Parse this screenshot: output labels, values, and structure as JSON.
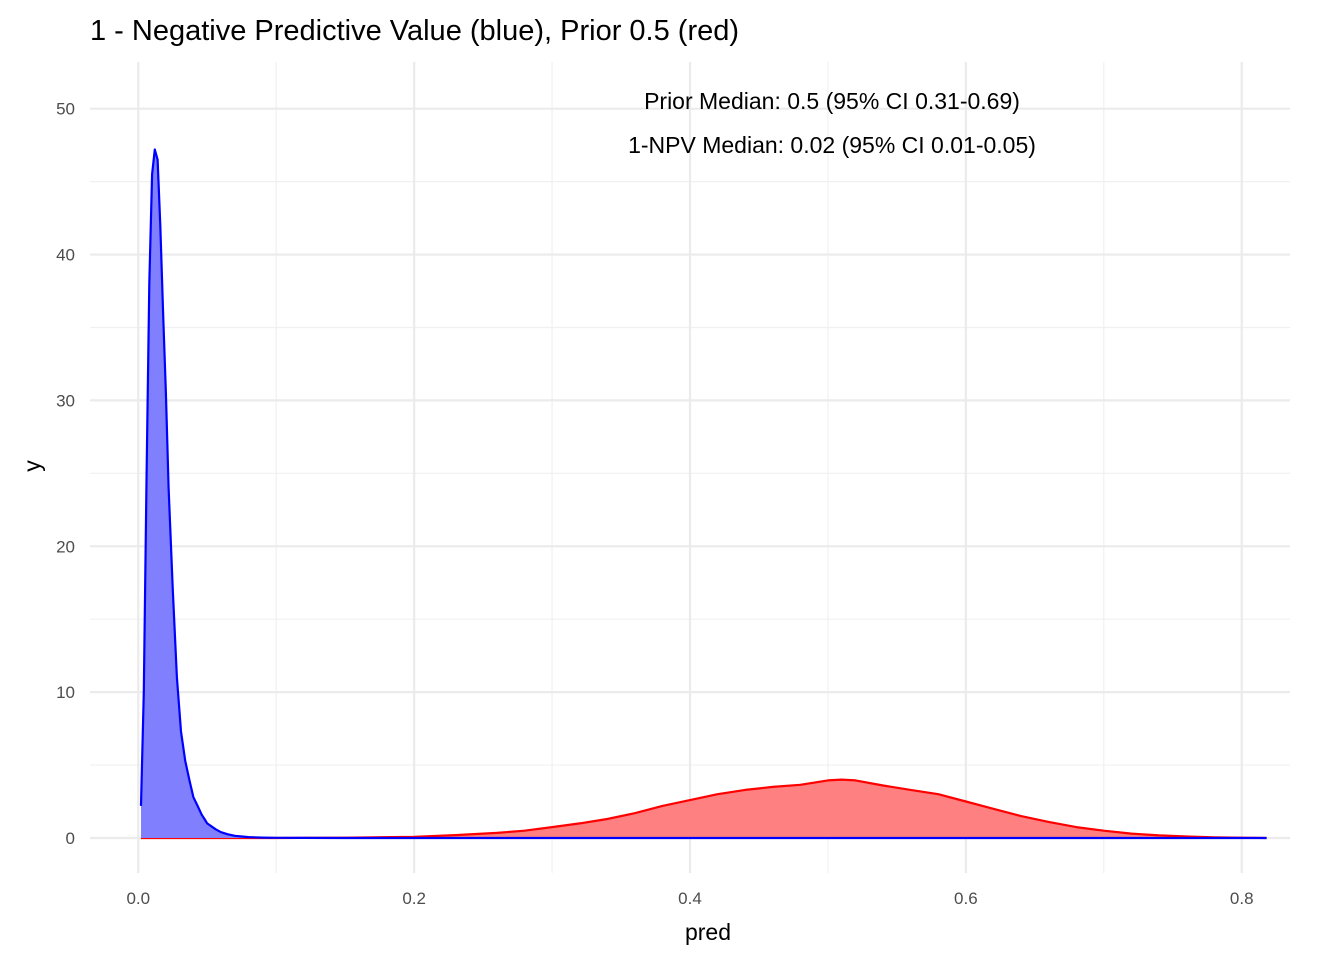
{
  "chart_data": {
    "type": "area",
    "title": "1 - Negative Predictive Value (blue), Prior 0.5 (red)",
    "xlabel": "pred",
    "ylabel": "y",
    "xlim": [
      -0.035,
      0.835
    ],
    "ylim": [
      -2.4,
      53.2
    ],
    "x_ticks": [
      0.0,
      0.2,
      0.4,
      0.6,
      0.8
    ],
    "x_tick_labels": [
      "0.0",
      "0.2",
      "0.4",
      "0.6",
      "0.8"
    ],
    "y_ticks": [
      0,
      10,
      20,
      30,
      40,
      50
    ],
    "y_tick_labels": [
      "0",
      "10",
      "20",
      "30",
      "40",
      "50"
    ],
    "grid": true,
    "annotations": [
      "Prior Median: 0.5 (95% CI 0.31-0.69)",
      "1-NPV Median: 0.02 (95% CI 0.01-0.05)"
    ],
    "series": [
      {
        "color": "#0000ff",
        "fill": "#8080ff",
        "x": [
          0.002,
          0.004,
          0.006,
          0.008,
          0.01,
          0.012,
          0.014,
          0.016,
          0.018,
          0.02,
          0.022,
          0.025,
          0.028,
          0.031,
          0.034,
          0.037,
          0.04,
          0.043,
          0.046,
          0.048,
          0.05,
          0.053,
          0.056,
          0.06,
          0.065,
          0.07,
          0.075,
          0.08,
          0.09,
          0.1,
          0.12,
          0.15,
          0.2,
          0.3,
          0.4,
          0.6,
          0.8,
          0.818
        ],
        "y": [
          2.2,
          10.0,
          25.0,
          38.0,
          45.5,
          47.2,
          46.5,
          42.0,
          36.0,
          30.5,
          24.0,
          17.0,
          11.0,
          7.3,
          5.3,
          4.0,
          2.8,
          2.2,
          1.6,
          1.3,
          1.0,
          0.8,
          0.6,
          0.4,
          0.25,
          0.15,
          0.1,
          0.06,
          0.03,
          0.01,
          0.005,
          0.0,
          0.0,
          0.0,
          0.0,
          0.0,
          0.0,
          0.0
        ]
      },
      {
        "color": "#ff0000",
        "fill": "#ff8080",
        "x": [
          0.002,
          0.1,
          0.15,
          0.2,
          0.23,
          0.26,
          0.28,
          0.3,
          0.32,
          0.34,
          0.36,
          0.38,
          0.4,
          0.42,
          0.44,
          0.46,
          0.48,
          0.5,
          0.51,
          0.52,
          0.54,
          0.56,
          0.58,
          0.6,
          0.62,
          0.64,
          0.66,
          0.68,
          0.7,
          0.72,
          0.74,
          0.76,
          0.78,
          0.8,
          0.818
        ],
        "y": [
          0.0,
          0.0,
          0.02,
          0.08,
          0.2,
          0.35,
          0.5,
          0.75,
          1.0,
          1.3,
          1.7,
          2.2,
          2.6,
          3.0,
          3.3,
          3.5,
          3.65,
          3.95,
          4.0,
          3.95,
          3.6,
          3.3,
          3.0,
          2.5,
          2.0,
          1.5,
          1.1,
          0.75,
          0.5,
          0.3,
          0.18,
          0.1,
          0.05,
          0.02,
          0.0
        ]
      }
    ]
  }
}
